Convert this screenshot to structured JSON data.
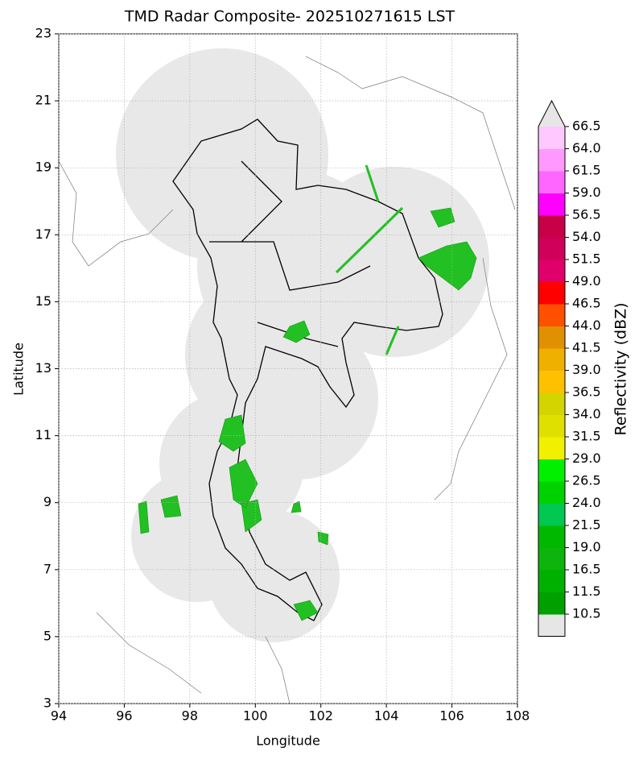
{
  "title": "TMD Radar Composite- 202510271615 LST",
  "x_axis": {
    "label": "Longitude",
    "lim": [
      94,
      108
    ],
    "ticks": [
      94,
      96,
      98,
      100,
      102,
      104,
      106,
      108
    ]
  },
  "y_axis": {
    "label": "Latitude",
    "lim": [
      3,
      23
    ],
    "ticks": [
      3,
      5,
      7,
      9,
      11,
      13,
      15,
      17,
      19,
      21,
      23
    ]
  },
  "colorbar": {
    "label": "Reflectivity (dBZ)",
    "ticks": [
      "10.5",
      "11.5",
      "16.5",
      "19.0",
      "21.5",
      "24.0",
      "26.5",
      "29.0",
      "31.5",
      "34.0",
      "36.5",
      "39.0",
      "41.5",
      "44.0",
      "46.5",
      "49.0",
      "51.5",
      "54.0",
      "56.5",
      "59.0",
      "61.5",
      "64.0",
      "66.5"
    ],
    "under_color": "#e6e6e6",
    "over_color": "#e6e6e6",
    "colors": [
      "#00a000",
      "#00b000",
      "#0cb40c",
      "#00b800",
      "#00c850",
      "#00d200",
      "#00f000",
      "#f0f000",
      "#e0e000",
      "#d4d400",
      "#ffc000",
      "#f0b000",
      "#e09000",
      "#ff5000",
      "#ff0000",
      "#e0006c",
      "#d0005a",
      "#c80048",
      "#ff00ff",
      "#ff66ff",
      "#ff99ff",
      "#ffc8ff"
    ]
  }
}
